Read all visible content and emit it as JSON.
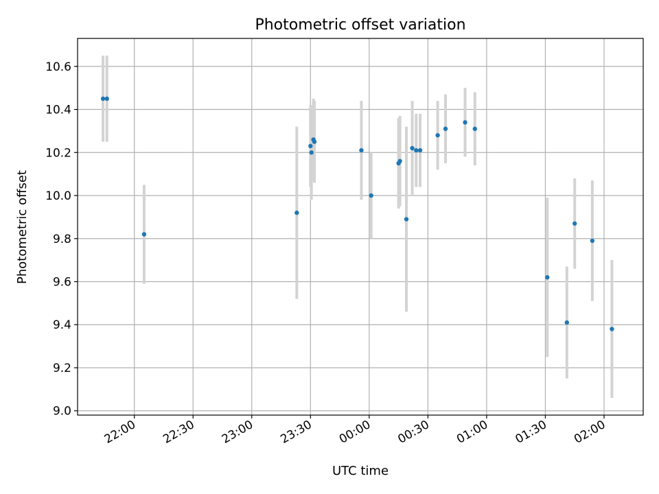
{
  "chart_data": {
    "type": "scatter",
    "title": "Photometric offset variation",
    "xlabel": "UTC time",
    "ylabel": "Photometric offset",
    "grid": true,
    "x_tick_labels": [
      "22:00",
      "22:30",
      "23:00",
      "23:30",
      "00:00",
      "00:30",
      "01:00",
      "01:30",
      "02:00"
    ],
    "x_tick_minutes": [
      0,
      30,
      60,
      90,
      120,
      150,
      180,
      210,
      240
    ],
    "xlim_minutes": [
      -29,
      260
    ],
    "y_ticks": [
      9.0,
      9.2,
      9.4,
      9.6,
      9.8,
      10.0,
      10.2,
      10.4,
      10.6
    ],
    "y_tick_labels": [
      "9.0",
      "9.2",
      "9.4",
      "9.6",
      "9.8",
      "10.0",
      "10.2",
      "10.4",
      "10.6"
    ],
    "ylim": [
      8.98,
      10.73
    ],
    "colors": {
      "point": "#1f77b4",
      "errorbar": "#d3d3d3",
      "grid": "#b0b0b0"
    },
    "points": [
      {
        "t": -16,
        "y": 10.45,
        "err": 0.2
      },
      {
        "t": -14,
        "y": 10.45,
        "err": 0.2
      },
      {
        "t": 5,
        "y": 9.82,
        "err": 0.23
      },
      {
        "t": 83,
        "y": 9.92,
        "err": 0.4
      },
      {
        "t": 90,
        "y": 10.23,
        "err": 0.19
      },
      {
        "t": 90.5,
        "y": 10.2,
        "err": 0.22
      },
      {
        "t": 91.5,
        "y": 10.26,
        "err": 0.19
      },
      {
        "t": 92,
        "y": 10.25,
        "err": 0.19
      },
      {
        "t": 116,
        "y": 10.21,
        "err": 0.23
      },
      {
        "t": 121,
        "y": 10.0,
        "err": 0.2
      },
      {
        "t": 135,
        "y": 10.15,
        "err": 0.21
      },
      {
        "t": 135.7,
        "y": 10.16,
        "err": 0.21
      },
      {
        "t": 139,
        "y": 9.89,
        "err": 0.43
      },
      {
        "t": 142,
        "y": 10.22,
        "err": 0.22
      },
      {
        "t": 144,
        "y": 10.21,
        "err": 0.17
      },
      {
        "t": 146,
        "y": 10.21,
        "err": 0.17
      },
      {
        "t": 155,
        "y": 10.28,
        "err": 0.16
      },
      {
        "t": 159,
        "y": 10.31,
        "err": 0.16
      },
      {
        "t": 169,
        "y": 10.34,
        "err": 0.16
      },
      {
        "t": 174,
        "y": 10.31,
        "err": 0.17
      },
      {
        "t": 211,
        "y": 9.62,
        "err": 0.37
      },
      {
        "t": 221,
        "y": 9.41,
        "err": 0.26
      },
      {
        "t": 225,
        "y": 9.87,
        "err": 0.21
      },
      {
        "t": 234,
        "y": 9.79,
        "err": 0.28
      },
      {
        "t": 244,
        "y": 9.38,
        "err": 0.32
      }
    ]
  }
}
